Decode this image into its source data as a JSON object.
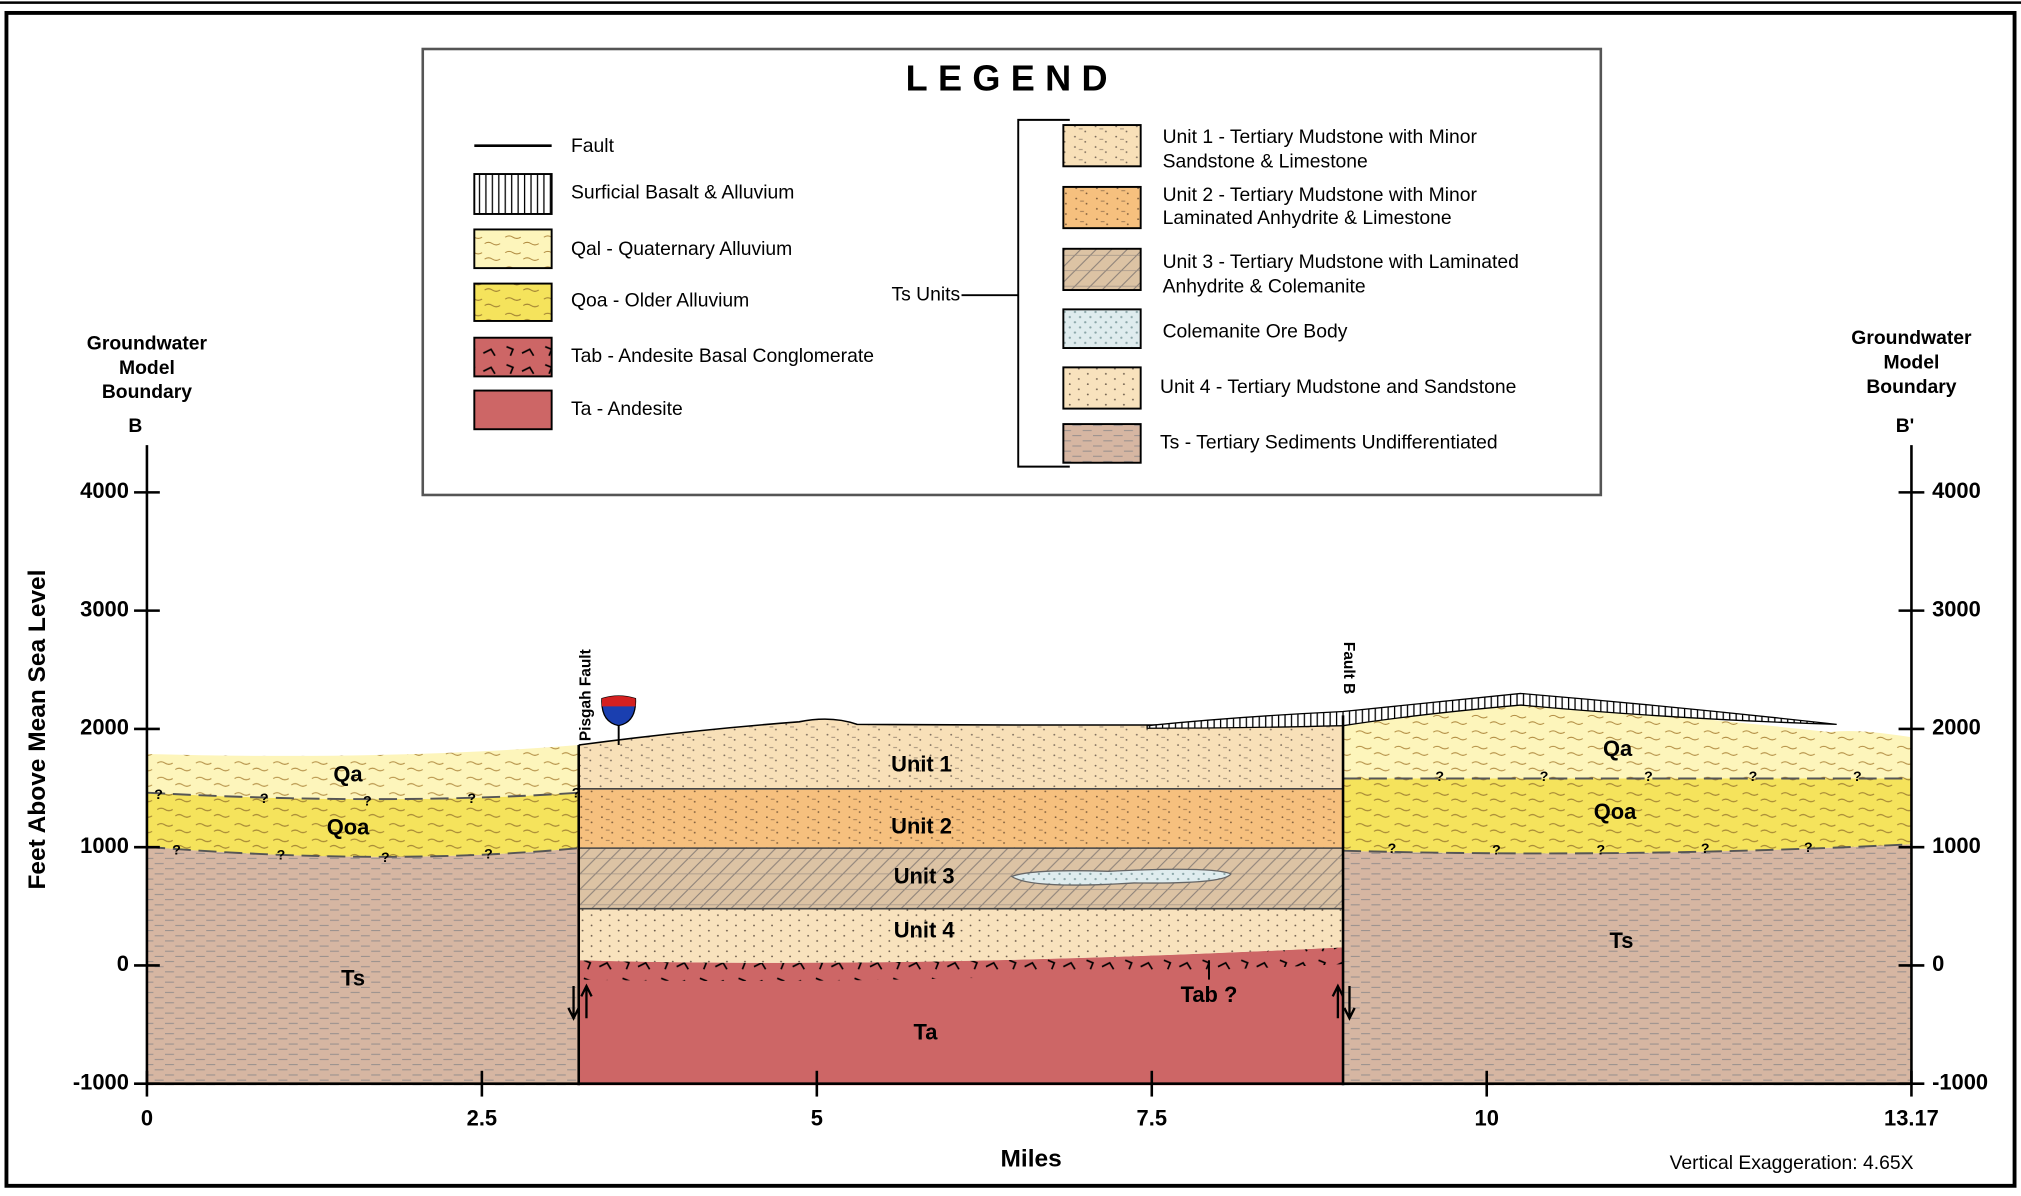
{
  "legend": {
    "title": "LEGEND",
    "items": [
      "Fault",
      "Surficial Basalt & Alluvium",
      "Qal - Quaternary Alluvium",
      "Qoa - Older Alluvium",
      "Tab - Andesite Basal Conglomerate",
      "Ta - Andesite"
    ],
    "group_label": "Ts Units",
    "group_items": [
      [
        "Unit 1 - Tertiary Mudstone with Minor",
        "Sandstone & Limestone"
      ],
      [
        "Unit 2 - Tertiary Mudstone with Minor",
        "Laminated Anhydrite & Limestone"
      ],
      [
        "Unit 3 - Tertiary Mudstone with Laminated",
        "Anhydrite & Colemanite"
      ],
      [
        "Colemanite Ore Body"
      ],
      [
        "Unit 4 - Tertiary Mudstone and Sandstone"
      ],
      [
        "Ts - Tertiary Sediments Undifferentiated"
      ]
    ]
  },
  "boundaries": {
    "lines": [
      "Groundwater",
      "Model",
      "Boundary"
    ],
    "left_marker": "B",
    "right_marker": "B'"
  },
  "axes": {
    "y_title": "Feet Above Mean Sea Level",
    "x_title": "Miles",
    "ylim": [
      -1000,
      4400
    ],
    "yticks": [
      -1000,
      0,
      1000,
      2000,
      3000,
      4000
    ],
    "xlim": [
      0,
      13.17
    ],
    "xticks": [
      0,
      2.5,
      5,
      7.5,
      10,
      13.17
    ]
  },
  "faults": [
    "Pisgah Fault",
    "Fault B"
  ],
  "units": {
    "left": [
      "Qa",
      "Qoa",
      "Ts"
    ],
    "center": [
      "Unit 1",
      "Unit 2",
      "Unit 3",
      "Unit 4",
      "Ta",
      "Tab ?"
    ],
    "right": [
      "Qa",
      "Qoa",
      "Ts"
    ]
  },
  "uncertain": "?",
  "note": "Vertical Exaggeration: 4.65X"
}
